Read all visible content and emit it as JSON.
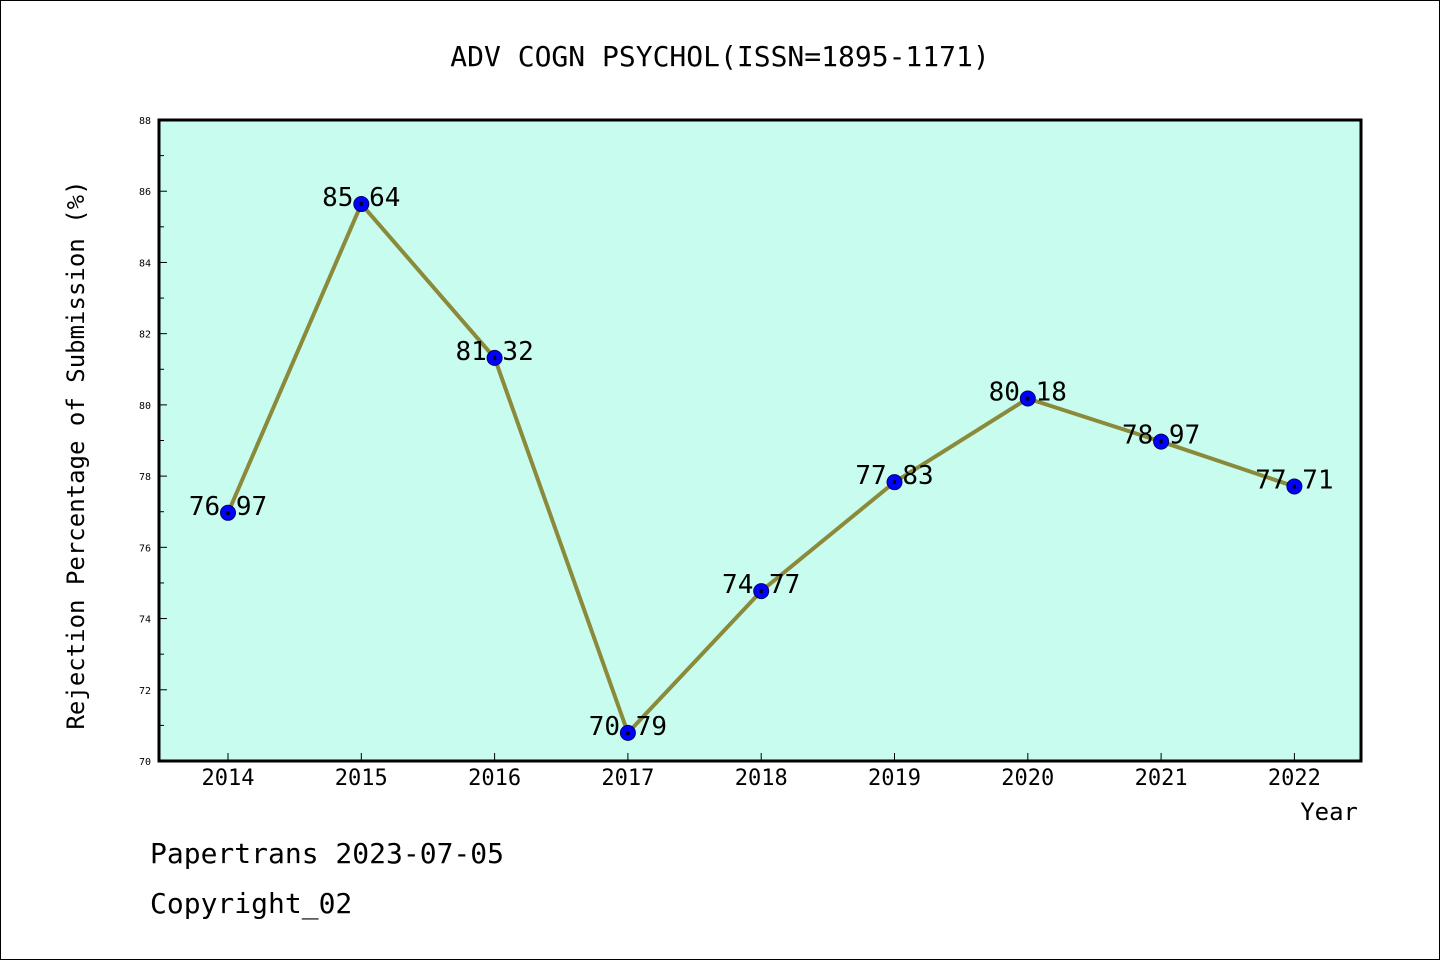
{
  "chart_data": {
    "type": "line",
    "title": "ADV COGN PSYCHOL(ISSN=1895-1171)",
    "xlabel": "Year",
    "ylabel": "Rejection Percentage of Submission (%)",
    "categories": [
      "2014",
      "2015",
      "2016",
      "2017",
      "2018",
      "2019",
      "2020",
      "2021",
      "2022"
    ],
    "series": [
      {
        "values": [
          76.97,
          85.64,
          81.32,
          70.79,
          74.77,
          77.83,
          80.18,
          78.97,
          77.71
        ],
        "labels": [
          "76.97",
          "85.64",
          "81.32",
          "70.79",
          "74.77",
          "77.83",
          "80.18",
          "78.97",
          "77.71"
        ]
      }
    ],
    "ylim": [
      70,
      88
    ],
    "yticks": [
      70,
      72,
      74,
      76,
      78,
      80,
      82,
      84,
      86,
      88
    ],
    "ytick_labels": [
      "70",
      "72",
      "74",
      "76",
      "78",
      "80",
      "82",
      "84",
      "86",
      "88"
    ],
    "grid": false,
    "colors": {
      "plot_background": "#c8fcee",
      "line": "#8b8a3a",
      "marker": "#0000ff"
    }
  },
  "footer": {
    "line1": "Papertrans 2023-07-05",
    "line2": "Copyright_02"
  }
}
